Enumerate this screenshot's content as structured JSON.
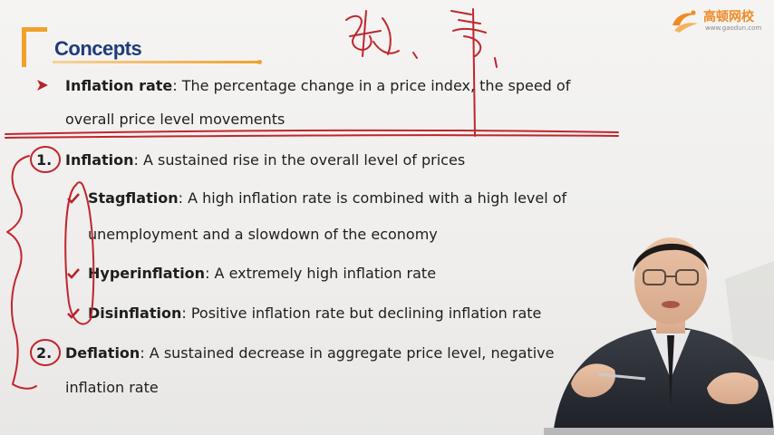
{
  "slide": {
    "title": "Concepts",
    "brand": {
      "name": "高顿网校",
      "url": "www.gaodun.com"
    },
    "items": [
      {
        "marker": "",
        "term": "Inflation rate",
        "text": ": The percentage change in a price index, the speed of",
        "continuation": "overall price level movements"
      },
      {
        "marker": "1.",
        "term": "Inflation",
        "text": ": A sustained rise in the overall level of prices"
      },
      {
        "marker": "",
        "term": "Stagflation",
        "text": ": A high inflation rate is combined with a high level of",
        "continuation": "unemployment and a slowdown of the economy"
      },
      {
        "marker": "",
        "term": "Hyperinflation",
        "text": ": A extremely high inflation rate"
      },
      {
        "marker": "",
        "term": "Disinflation",
        "text": ": Positive inflation rate but declining inflation rate"
      },
      {
        "marker": "2.",
        "term": "Deflation",
        "text": ": A sustained decrease in aggregate price level, negative",
        "continuation": "inflation rate"
      }
    ]
  },
  "icons": {
    "bullet": "arrow-right-icon",
    "check": "check-icon",
    "logo": "brand-logo-icon"
  },
  "colors": {
    "title": "#1f3b7a",
    "accent": "#f2a12a",
    "ink": "#c0262d",
    "brand": "#f08a24"
  }
}
